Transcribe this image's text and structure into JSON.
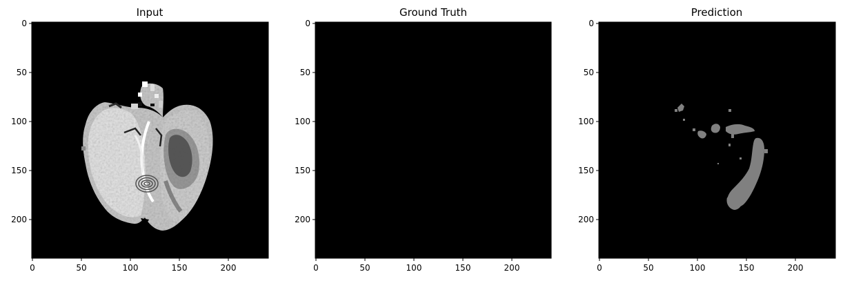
{
  "panels": [
    {
      "id": "input",
      "title": "Input",
      "xticks": [
        "0",
        "50",
        "100",
        "150",
        "200"
      ],
      "yticks": [
        "0",
        "50",
        "100",
        "150",
        "200"
      ],
      "description": "brain-mri-slice"
    },
    {
      "id": "ground-truth",
      "title": "Ground Truth",
      "xticks": [
        "0",
        "50",
        "100",
        "150",
        "200"
      ],
      "yticks": [
        "0",
        "50",
        "100",
        "150",
        "200"
      ],
      "description": "empty-mask"
    },
    {
      "id": "prediction",
      "title": "Prediction",
      "xticks": [
        "0",
        "50",
        "100",
        "150",
        "200"
      ],
      "yticks": [
        "0",
        "50",
        "100",
        "150",
        "200"
      ],
      "description": "predicted-segmentation-mask"
    }
  ],
  "axis_range": [
    0,
    240
  ],
  "colors": {
    "background": "#000000",
    "mask": "#808080"
  }
}
